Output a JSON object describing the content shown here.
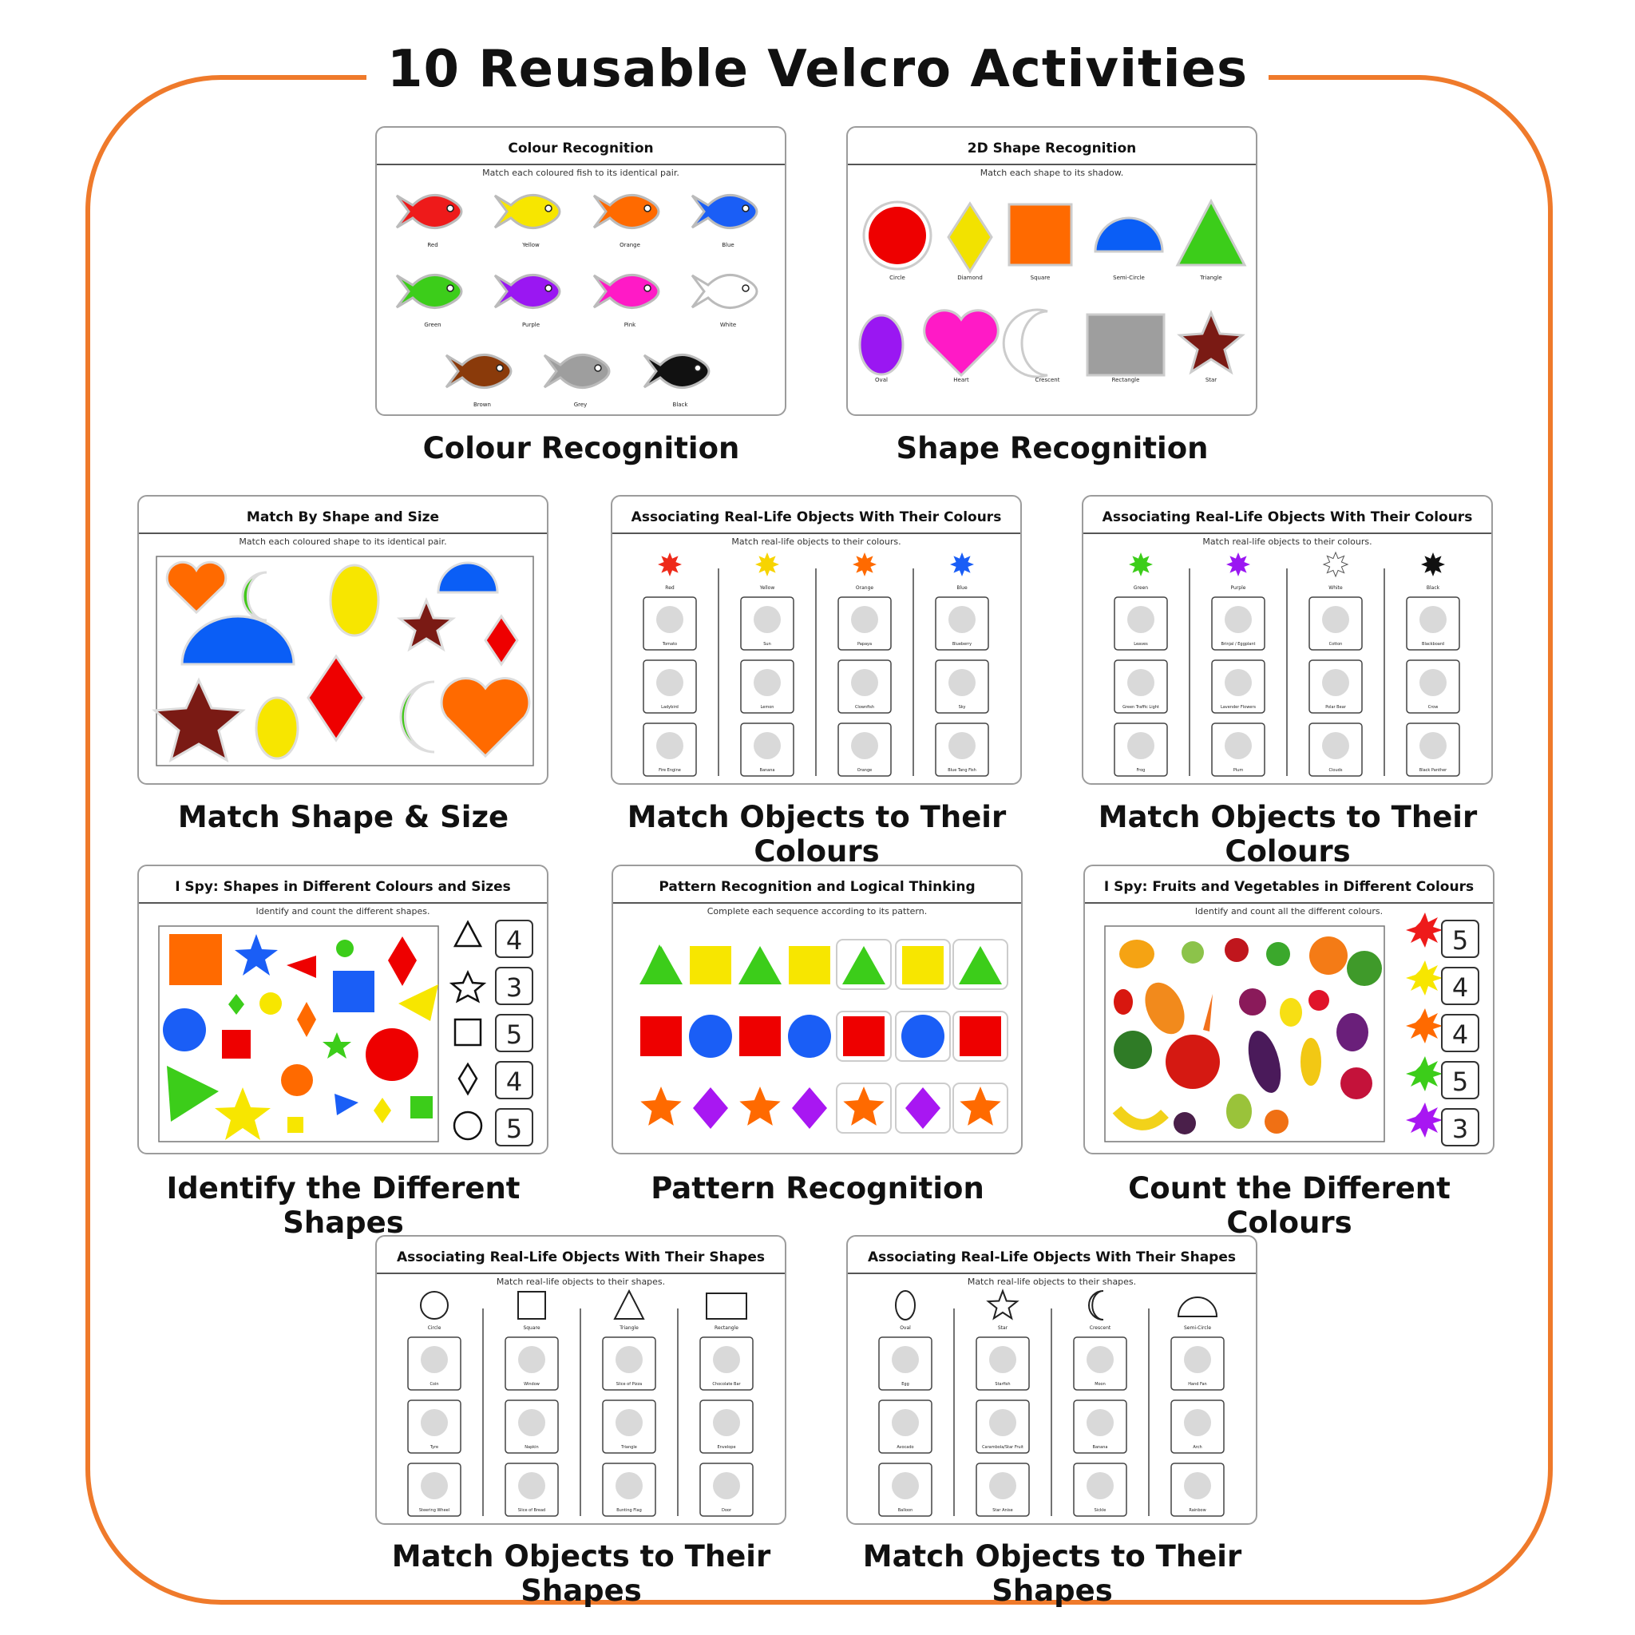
{
  "page_title": "10 Reusable Velcro Activities",
  "colors": {
    "frame": "#ef7a2b"
  },
  "cards": {
    "colour": {
      "title": "Colour Recognition",
      "subtitle": "Match each coloured fish to its identical pair.",
      "caption": "Colour Recognition",
      "labels": [
        "Red",
        "Yellow",
        "Orange",
        "Blue",
        "Green",
        "Purple",
        "Pink",
        "White",
        "Brown",
        "Grey",
        "Black"
      ]
    },
    "shape2d": {
      "title": "2D Shape Recognition",
      "subtitle": "Match each shape to its shadow.",
      "caption": "Shape Recognition",
      "labels": [
        "Circle",
        "Diamond",
        "Square",
        "Semi-Circle",
        "Triangle",
        "Oval",
        "Heart",
        "Crescent",
        "Rectangle",
        "Star"
      ]
    },
    "matchsize": {
      "title": "Match By Shape and Size",
      "subtitle": "Match each coloured shape to its identical pair.",
      "caption": "Match Shape & Size"
    },
    "objcol1": {
      "title": "Associating Real-Life Objects With Their Colours",
      "subtitle": "Match real-life objects to their colours.",
      "caption": "Match Objects to Their Colours",
      "headers": [
        "Red",
        "Yellow",
        "Orange",
        "Blue"
      ],
      "items": [
        "Tomato",
        "Sun",
        "Papaya",
        "Blueberry",
        "Ladybird",
        "Lemon",
        "Clownfish",
        "Sky",
        "Fire Engine",
        "Banana",
        "Orange",
        "Blue Tang Fish"
      ]
    },
    "objcol2": {
      "title": "Associating Real-Life Objects With Their Colours",
      "subtitle": "Match real-life objects to their colours.",
      "caption": "Match Objects to Their Colours",
      "headers": [
        "Green",
        "Purple",
        "White",
        "Black"
      ],
      "items": [
        "Leaves",
        "Brinjal / Eggplant",
        "Cotton",
        "Blackboard",
        "Green Traffic Light",
        "Lavender Flowers",
        "Polar Bear",
        "Crow",
        "Frog",
        "Plum",
        "Clouds",
        "Black Panther"
      ]
    },
    "ispy": {
      "title": "I Spy: Shapes in Different Colours and Sizes",
      "subtitle": "Identify and count the different shapes.",
      "caption": "Identify the Different Shapes",
      "counts": [
        "4",
        "3",
        "5",
        "4",
        "5"
      ]
    },
    "pattern": {
      "title": "Pattern Recognition and Logical Thinking",
      "subtitle": "Complete each sequence according to its pattern.",
      "caption": "Pattern Recognition"
    },
    "fruits": {
      "title": "I Spy: Fruits and Vegetables in Different Colours",
      "subtitle": "Identify and count all the different colours.",
      "caption": "Count the Different Colours",
      "counts": [
        "5",
        "4",
        "4",
        "5",
        "3"
      ]
    },
    "objshape1": {
      "title": "Associating Real-Life Objects With Their Shapes",
      "subtitle": "Match real-life objects to their shapes.",
      "caption": "Match Objects to Their Shapes",
      "headers": [
        "Circle",
        "Square",
        "Triangle",
        "Rectangle"
      ],
      "items": [
        "Coin",
        "Window",
        "Slice of Pizza",
        "Chocolate Bar",
        "Tyre",
        "Napkin",
        "Triangle",
        "Envelope",
        "Steering Wheel",
        "Slice of Bread",
        "Bunting Flag",
        "Door"
      ]
    },
    "objshape2": {
      "title": "Associating Real-Life Objects With Their Shapes",
      "subtitle": "Match real-life objects to their shapes.",
      "caption": "Match Objects to Their Shapes",
      "headers": [
        "Oval",
        "Star",
        "Crescent",
        "Semi-Circle"
      ],
      "items": [
        "Egg",
        "Starfish",
        "Moon",
        "Hand Fan",
        "Avocado",
        "Carambola/Star Fruit",
        "Banana",
        "Arch",
        "Balloon",
        "Star Anise",
        "Sickle",
        "Rainbow"
      ]
    }
  }
}
